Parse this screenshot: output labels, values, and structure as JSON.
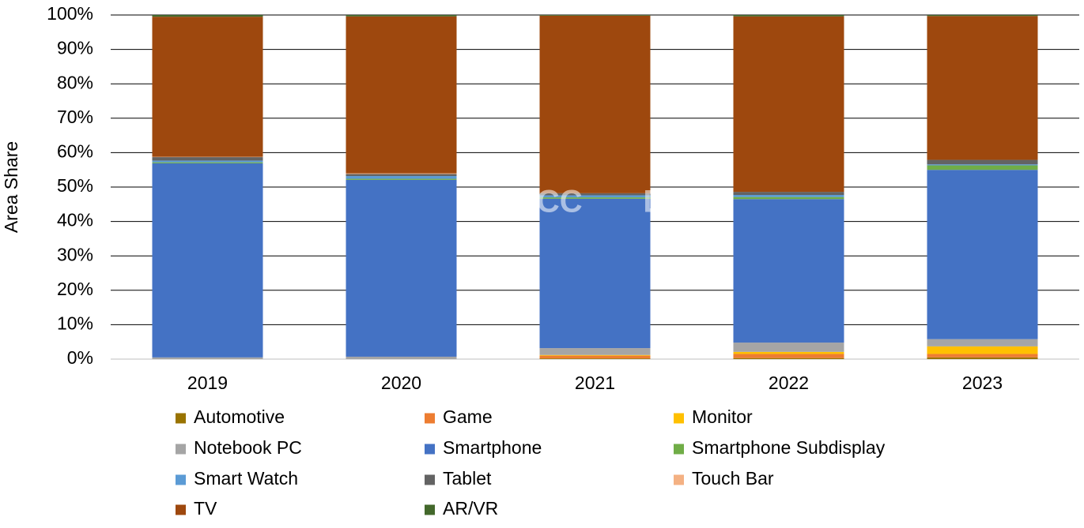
{
  "chart_data": {
    "type": "stacked-bar",
    "y_label": "Area Share",
    "watermark": "DSCC",
    "categories": [
      "2019",
      "2020",
      "2021",
      "2022",
      "2023"
    ],
    "series": [
      {
        "name": "Automotive",
        "color": "#997300",
        "values": [
          0,
          0,
          0.2,
          0.3,
          0.5
        ]
      },
      {
        "name": "Game",
        "color": "#ed7d31",
        "values": [
          0,
          0,
          0.8,
          1.2,
          1.0
        ]
      },
      {
        "name": "Monitor",
        "color": "#ffc000",
        "values": [
          0,
          0,
          0.2,
          0.6,
          2.2
        ]
      },
      {
        "name": "Notebook PC",
        "color": "#a5a5a5",
        "values": [
          0.5,
          0.7,
          2.0,
          2.7,
          2.1
        ]
      },
      {
        "name": "Smartphone",
        "color": "#4472c4",
        "values": [
          56.4,
          51.4,
          43.4,
          41.7,
          49.2
        ]
      },
      {
        "name": "Smartphone Subdisplay",
        "color": "#70ad47",
        "values": [
          0.3,
          0.3,
          0.4,
          0.6,
          1.3
        ]
      },
      {
        "name": "Smart Watch",
        "color": "#5b9bd5",
        "values": [
          0.5,
          0.8,
          0.6,
          0.6,
          0.3
        ]
      },
      {
        "name": "Tablet",
        "color": "#636363",
        "values": [
          1.0,
          0.6,
          0.6,
          0.9,
          1.3
        ]
      },
      {
        "name": "Touch Bar",
        "color": "#f4b183",
        "values": [
          0.1,
          0.2,
          0,
          0,
          0
        ]
      },
      {
        "name": "TV",
        "color": "#9e480e",
        "values": [
          40.7,
          45.6,
          51.6,
          51.0,
          41.8
        ]
      },
      {
        "name": "AR/VR",
        "color": "#43682b",
        "values": [
          0.5,
          0.4,
          0.2,
          0.4,
          0.3
        ]
      }
    ],
    "ylim": [
      0,
      100
    ],
    "yticks": [
      {
        "value": 0,
        "label": "0%"
      },
      {
        "value": 10,
        "label": "10%"
      },
      {
        "value": 20,
        "label": "20%"
      },
      {
        "value": 30,
        "label": "30%"
      },
      {
        "value": 40,
        "label": "40%"
      },
      {
        "value": 50,
        "label": "50%"
      },
      {
        "value": 60,
        "label": "60%"
      },
      {
        "value": 70,
        "label": "70%"
      },
      {
        "value": 80,
        "label": "80%"
      },
      {
        "value": 90,
        "label": "90%"
      },
      {
        "value": 100,
        "label": "100%"
      }
    ],
    "grid": true
  }
}
